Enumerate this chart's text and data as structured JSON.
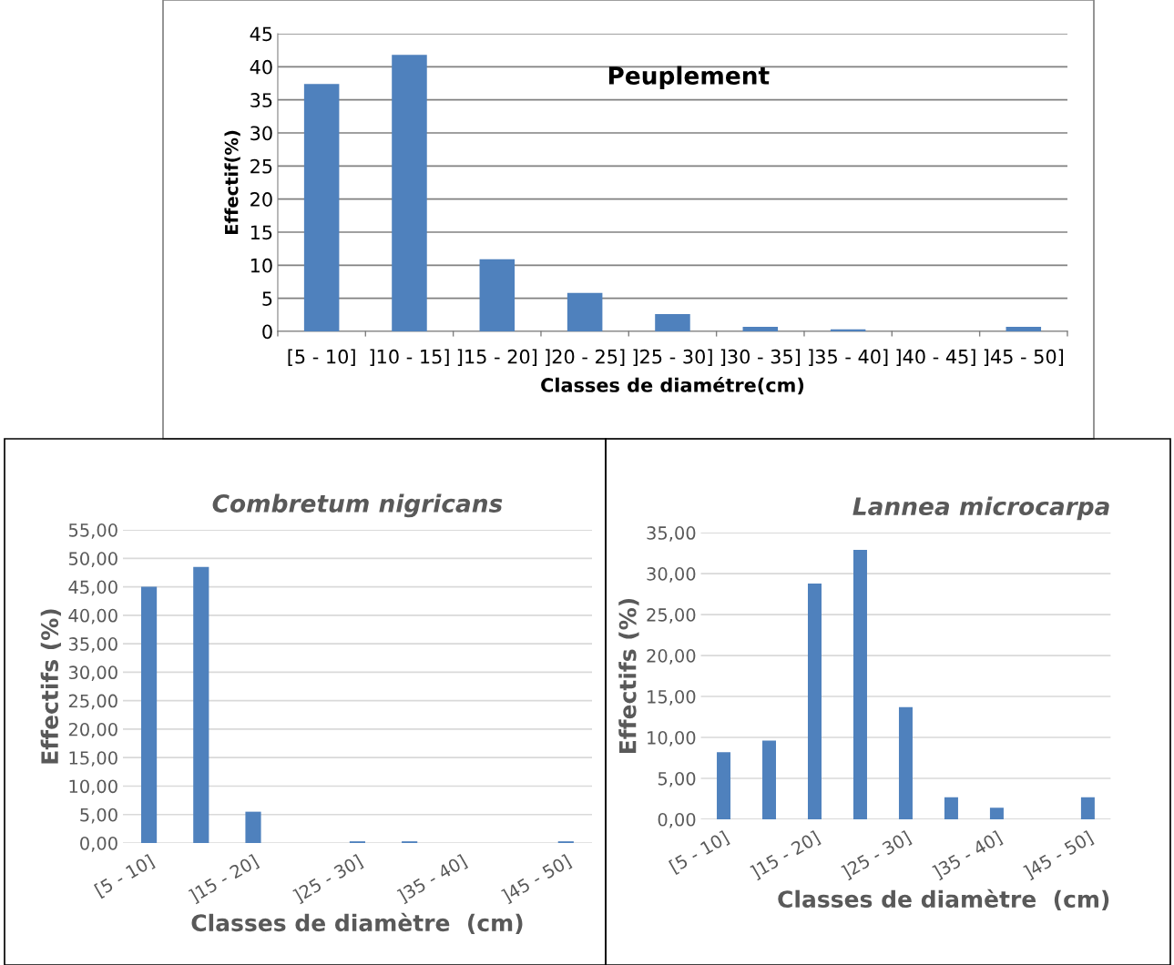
{
  "chart_data": [
    {
      "type": "bar",
      "title": "Peuplement",
      "xlabel": "Classes de diamétre(cm)",
      "ylabel": "Effectif(%)",
      "categories": [
        "[5 - 10]",
        "]10 - 15]",
        "]15 - 20]",
        "]20 - 25]",
        "]25 - 30]",
        "]30 - 35]",
        "]35 - 40]",
        "]40 - 45]",
        "]45 - 50]"
      ],
      "values": [
        37.4,
        41.8,
        10.9,
        5.8,
        2.6,
        0.7,
        0.3,
        0,
        0.7
      ],
      "color": "#4f81bd",
      "ylim": [
        0,
        45
      ],
      "yticks": [
        0,
        5,
        10,
        15,
        20,
        25,
        30,
        35,
        40,
        45
      ],
      "grid": "y"
    },
    {
      "type": "bar",
      "title": "Combretum nigricans",
      "xlabel": "Classes de diamètre  (cm)",
      "ylabel": "Effectifs (%)",
      "categories": [
        "[5 - 10]",
        null,
        "]15 - 20]",
        null,
        "]25 - 30]",
        null,
        "]35 - 40]",
        null,
        "]45 - 50]"
      ],
      "values": [
        45.0,
        48.5,
        5.5,
        0,
        0.3,
        0.3,
        0,
        0,
        0.3
      ],
      "color": "#4f81bd",
      "ylim": [
        0,
        55
      ],
      "yticks": [
        {
          "value": 0,
          "label": "0,00"
        },
        {
          "value": 5,
          "label": "5,00"
        },
        {
          "value": 10,
          "label": "10,00"
        },
        {
          "value": 15,
          "label": "15,00"
        },
        {
          "value": 20,
          "label": "20,00"
        },
        {
          "value": 25,
          "label": "25,00"
        },
        {
          "value": 30,
          "label": "30,00"
        },
        {
          "value": 35,
          "label": "35,00"
        },
        {
          "value": 40,
          "label": "40,00"
        },
        {
          "value": 45,
          "label": "45,00"
        },
        {
          "value": 50,
          "label": "50,00"
        },
        {
          "value": 55,
          "label": "55,00"
        }
      ],
      "grid": "y"
    },
    {
      "type": "bar",
      "title": "Lannea microcarpa",
      "xlabel": "Classes de diamètre  (cm)",
      "ylabel": "Effectifs (%)",
      "categories": [
        "[5 - 10]",
        null,
        "]15 - 20]",
        null,
        "]25 - 30]",
        null,
        "]35 - 40]",
        null,
        "]45 - 50]"
      ],
      "values": [
        8.2,
        9.6,
        28.8,
        32.9,
        13.7,
        2.7,
        1.4,
        0,
        2.7
      ],
      "color": "#4f81bd",
      "ylim": [
        0,
        35
      ],
      "yticks": [
        {
          "value": 0,
          "label": "0,00"
        },
        {
          "value": 5,
          "label": "5,00"
        },
        {
          "value": 10,
          "label": "10,00"
        },
        {
          "value": 15,
          "label": "15,00"
        },
        {
          "value": 20,
          "label": "20,00"
        },
        {
          "value": 25,
          "label": "25,00"
        },
        {
          "value": 30,
          "label": "30,00"
        },
        {
          "value": 35,
          "label": "35,00"
        }
      ],
      "grid": "y"
    }
  ]
}
